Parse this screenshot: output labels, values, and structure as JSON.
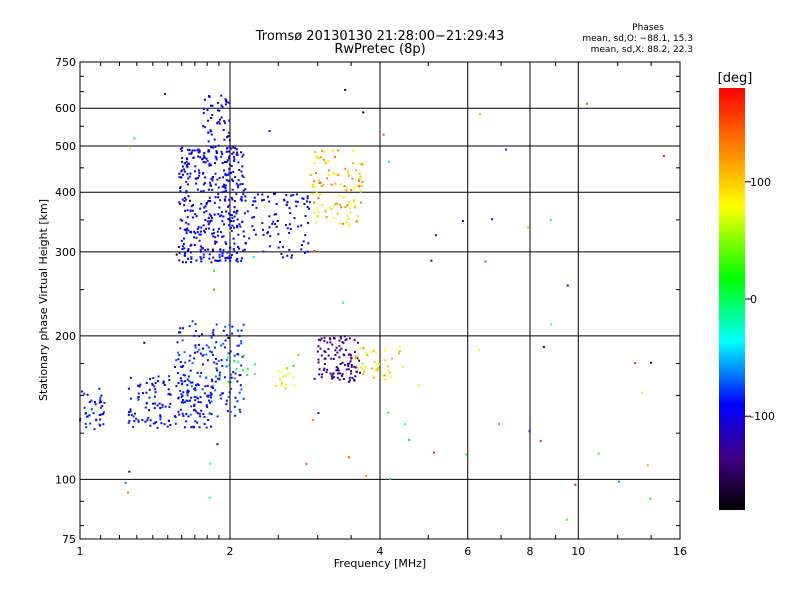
{
  "chart_data": {
    "type": "scatter",
    "title": "Tromsø 20130130 21:28:00−21:29:43",
    "subtitle": "RwPretec (8p)",
    "xlabel": "Frequency [MHz]",
    "ylabel": "Stationary phase Virtual Height [km]",
    "x_scale": "log",
    "y_scale": "log",
    "xlim": [
      1,
      16
    ],
    "ylim": [
      75,
      750
    ],
    "x_ticks": [
      1,
      2,
      4,
      6,
      8,
      10,
      16
    ],
    "y_ticks": [
      75,
      100,
      200,
      300,
      400,
      500,
      600,
      750
    ],
    "grid": true,
    "phases_box": {
      "title": "Phases",
      "line_o": "mean, sd,O: −88.1, 15.3",
      "line_x": "mean, sd,X:  88.2, 22.3"
    },
    "colorbar": {
      "label": "[deg]",
      "range": [
        -180,
        180
      ],
      "ticks": [
        100,
        0,
        -100
      ]
    },
    "series": [
      {
        "clusters": [
          {
            "x": [
              1.0,
              1.12
            ],
            "y": [
              125,
              155
            ],
            "phase": [
              -95,
              -75
            ],
            "n": 40
          },
          {
            "x": [
              1.25,
              1.85
            ],
            "y": [
              128,
              165
            ],
            "phase": [
              -100,
              -80
            ],
            "n": 160
          },
          {
            "x": [
              1.55,
              2.15
            ],
            "y": [
              135,
              215
            ],
            "phase": [
              -105,
              -65
            ],
            "n": 170
          },
          {
            "x": [
              1.58,
              2.15
            ],
            "y": [
              285,
              500
            ],
            "phase": [
              -110,
              -85
            ],
            "n": 420
          },
          {
            "x": [
              1.75,
              2.0
            ],
            "y": [
              500,
              640
            ],
            "phase": [
              -105,
              -90
            ],
            "n": 50
          },
          {
            "x": [
              2.15,
              2.9
            ],
            "y": [
              290,
              400
            ],
            "phase": [
              -110,
              -85
            ],
            "n": 90
          },
          {
            "x": [
              2.4,
              2.7
            ],
            "y": [
              155,
              170
            ],
            "phase": [
              50,
              110
            ],
            "n": 14
          },
          {
            "x": [
              3.0,
              3.65
            ],
            "y": [
              160,
              200
            ],
            "phase": [
              -150,
              -120
            ],
            "n": 110
          },
          {
            "x": [
              3.55,
              4.5
            ],
            "y": [
              162,
              190
            ],
            "phase": [
              60,
              120
            ],
            "n": 40
          },
          {
            "x": [
              2.9,
              3.7
            ],
            "y": [
              340,
              490
            ],
            "phase": [
              60,
              140
            ],
            "n": 110
          },
          {
            "x": [
              1.9,
              2.3
            ],
            "y": [
              155,
              185
            ],
            "phase": [
              -20,
              20
            ],
            "n": 12
          },
          {
            "x": [
              1.1,
              16.0
            ],
            "y": [
              80,
              680
            ],
            "phase": [
              -180,
              180
            ],
            "n": 70
          }
        ]
      }
    ]
  }
}
